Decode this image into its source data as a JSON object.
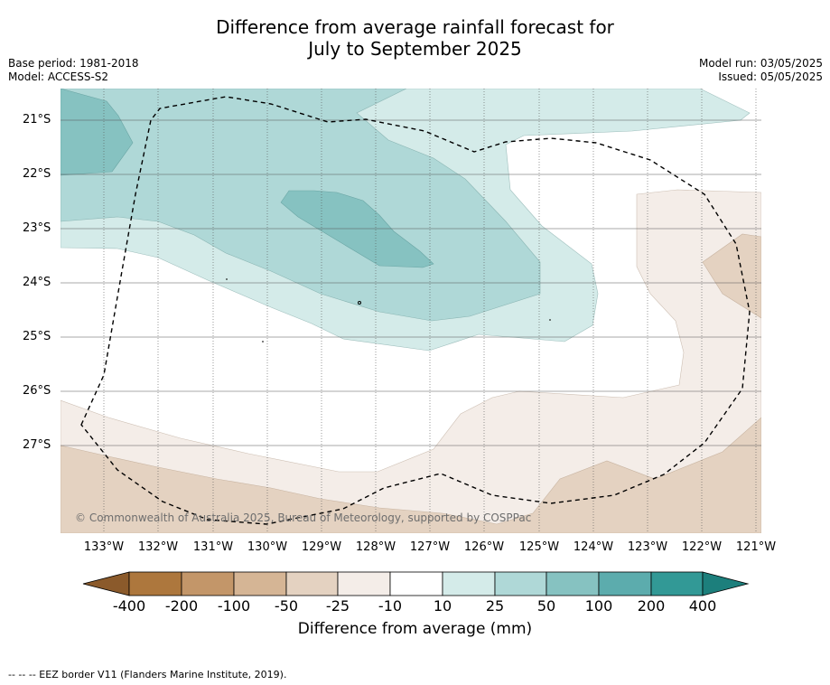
{
  "title_line1": "Difference from average rainfall forecast for",
  "title_line2": "July to September 2025",
  "base_period": "Base period: 1981-2018",
  "model": "Model: ACCESS-S2",
  "model_run": "Model run: 03/05/2025",
  "issued": "Issued: 05/05/2025",
  "copyright": "© Commonwealth of Australia 2025, Bureau of Meteorology, supported by COSPPac",
  "lat_labels": [
    "21°S",
    "22°S",
    "23°S",
    "24°S",
    "25°S",
    "26°S",
    "27°S"
  ],
  "lon_labels": [
    "133°W",
    "132°W",
    "131°W",
    "130°W",
    "129°W",
    "128°W",
    "127°W",
    "126°W",
    "125°W",
    "124°W",
    "123°W",
    "122°W",
    "121°W"
  ],
  "colorbar": {
    "labels": [
      "-400",
      "-200",
      "-100",
      "-50",
      "-25",
      "-10",
      "10",
      "25",
      "50",
      "100",
      "200",
      "400"
    ],
    "colors": [
      "#8b5a2b",
      "#ad773d",
      "#c39669",
      "#d5b595",
      "#e4d2c1",
      "#f4ede8",
      "#ffffff",
      "#d4ebe9",
      "#afd8d7",
      "#86c2c1",
      "#5cacad",
      "#329996",
      "#1c7f7c"
    ],
    "title": "Difference from average (mm)"
  },
  "footnote": "--  --  -- EEZ border V11 (Flanders Marine Institute, 2019)."
}
